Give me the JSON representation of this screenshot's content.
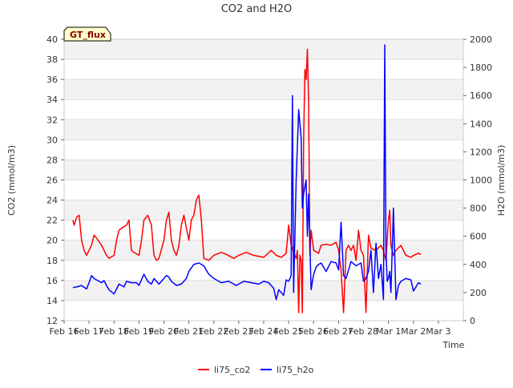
{
  "chart_data": {
    "type": "line",
    "title": "CO2 and H2O",
    "xlabel": "Time",
    "ylabel_left": "CO2 (mmol/m3)",
    "ylabel_right": "H2O (mmol/m3)",
    "badge": "GT_flux",
    "x_range": [
      0,
      16
    ],
    "x_ticks": [
      {
        "x": 0,
        "label": "Feb 16"
      },
      {
        "x": 1,
        "label": "Feb 17"
      },
      {
        "x": 2,
        "label": "Feb 18"
      },
      {
        "x": 3,
        "label": "Feb 19"
      },
      {
        "x": 4,
        "label": "Feb 20"
      },
      {
        "x": 5,
        "label": "Feb 21"
      },
      {
        "x": 6,
        "label": "Feb 22"
      },
      {
        "x": 7,
        "label": "Feb 23"
      },
      {
        "x": 8,
        "label": "Feb 24"
      },
      {
        "x": 9,
        "label": "Feb 25"
      },
      {
        "x": 10,
        "label": "Feb 26"
      },
      {
        "x": 11,
        "label": "Feb 27"
      },
      {
        "x": 12,
        "label": "Feb 28"
      },
      {
        "x": 13,
        "label": "Mar 1"
      },
      {
        "x": 14,
        "label": "Mar 2"
      },
      {
        "x": 15,
        "label": "Mar 3"
      }
    ],
    "y_left_range": [
      12,
      40
    ],
    "y_left_ticks": [
      "12",
      "14",
      "16",
      "18",
      "20",
      "22",
      "24",
      "26",
      "28",
      "30",
      "32",
      "34",
      "36",
      "38",
      "40"
    ],
    "y_right_range": [
      0,
      2000
    ],
    "y_right_ticks": [
      "0",
      "200",
      "400",
      "600",
      "800",
      "1000",
      "1200",
      "1400",
      "1600",
      "1800",
      "2000"
    ],
    "grid": true,
    "legend_position": "bottom-center",
    "series": [
      {
        "name": "li75_co2",
        "color": "#ff0000",
        "axis": "left",
        "x": [
          0.35,
          0.4,
          0.5,
          0.6,
          0.7,
          0.8,
          0.9,
          1.0,
          1.1,
          1.2,
          1.3,
          1.5,
          1.7,
          1.8,
          2.0,
          2.1,
          2.2,
          2.3,
          2.5,
          2.6,
          2.7,
          2.8,
          3.0,
          3.1,
          3.2,
          3.35,
          3.5,
          3.6,
          3.7,
          3.8,
          4.0,
          4.1,
          4.2,
          4.3,
          4.4,
          4.5,
          4.6,
          4.7,
          4.8,
          5.0,
          5.1,
          5.2,
          5.3,
          5.4,
          5.5,
          5.6,
          5.8,
          6.0,
          6.3,
          6.5,
          6.8,
          7.0,
          7.3,
          7.6,
          8.0,
          8.3,
          8.5,
          8.7,
          8.9,
          9.0,
          9.1,
          9.2,
          9.3,
          9.35,
          9.4,
          9.45,
          9.5,
          9.55,
          9.6,
          9.65,
          9.7,
          9.75,
          9.8,
          9.85,
          9.9,
          10.0,
          10.2,
          10.3,
          10.5,
          10.7,
          10.9,
          11.0,
          11.1,
          11.2,
          11.3,
          11.4,
          11.5,
          11.6,
          11.7,
          11.8,
          11.9,
          12.0,
          12.1,
          12.2,
          12.3,
          12.5,
          12.7,
          12.8,
          12.9,
          13.0,
          13.05,
          13.1,
          13.2,
          13.3,
          13.5,
          13.7,
          13.9,
          14.0,
          14.2,
          14.3
        ],
        "y": [
          22.0,
          21.5,
          22.3,
          22.5,
          20.0,
          19.0,
          18.5,
          19.0,
          19.5,
          20.5,
          20.2,
          19.5,
          18.5,
          18.2,
          18.5,
          20.0,
          21.0,
          21.2,
          21.5,
          22.0,
          19.0,
          18.8,
          18.5,
          20.0,
          22.0,
          22.5,
          21.5,
          18.5,
          18.0,
          18.2,
          20.0,
          22.0,
          22.8,
          20.0,
          19.0,
          18.5,
          19.5,
          21.5,
          22.5,
          20.0,
          22.0,
          22.5,
          24.0,
          24.5,
          22.0,
          18.2,
          18.0,
          18.5,
          18.8,
          18.6,
          18.2,
          18.5,
          18.8,
          18.5,
          18.3,
          19.0,
          18.5,
          18.3,
          18.7,
          21.5,
          19.5,
          18.8,
          18.2,
          19.0,
          12.8,
          18.5,
          18.0,
          12.8,
          30.0,
          37.0,
          36.0,
          39.0,
          34.0,
          18.5,
          21.0,
          19.0,
          18.7,
          19.5,
          19.6,
          19.5,
          19.8,
          19.0,
          17.0,
          12.8,
          19.0,
          19.5,
          19.0,
          19.5,
          18.0,
          21.0,
          19.0,
          18.5,
          12.8,
          20.5,
          19.2,
          19.0,
          19.5,
          19.0,
          18.0,
          22.0,
          23.0,
          19.5,
          18.5,
          19.0,
          19.5,
          18.5,
          18.3,
          18.5,
          18.7,
          18.6
        ]
      },
      {
        "name": "li75_h2o",
        "color": "#0000ff",
        "axis": "right",
        "x": [
          0.35,
          0.5,
          0.7,
          0.9,
          1.0,
          1.1,
          1.2,
          1.4,
          1.5,
          1.6,
          1.7,
          1.8,
          2.0,
          2.2,
          2.4,
          2.5,
          2.7,
          2.9,
          3.0,
          3.2,
          3.35,
          3.5,
          3.6,
          3.8,
          4.0,
          4.1,
          4.2,
          4.3,
          4.5,
          4.7,
          4.9,
          5.0,
          5.2,
          5.4,
          5.6,
          5.8,
          6.0,
          6.3,
          6.6,
          6.9,
          7.2,
          7.5,
          7.8,
          8.0,
          8.2,
          8.4,
          8.5,
          8.6,
          8.8,
          8.9,
          9.0,
          9.1,
          9.15,
          9.2,
          9.3,
          9.4,
          9.5,
          9.55,
          9.6,
          9.7,
          9.75,
          9.8,
          9.9,
          10.0,
          10.1,
          10.2,
          10.3,
          10.5,
          10.7,
          10.9,
          11.0,
          11.1,
          11.2,
          11.3,
          11.5,
          11.7,
          11.9,
          12.0,
          12.1,
          12.2,
          12.3,
          12.4,
          12.5,
          12.6,
          12.7,
          12.8,
          12.85,
          12.9,
          12.95,
          13.0,
          13.05,
          13.1,
          13.15,
          13.2,
          13.3,
          13.4,
          13.5,
          13.7,
          13.9,
          14.0,
          14.2,
          14.3
        ],
        "y": [
          235,
          240,
          250,
          225,
          270,
          320,
          300,
          280,
          270,
          285,
          250,
          220,
          190,
          260,
          240,
          280,
          270,
          270,
          250,
          330,
          280,
          260,
          300,
          260,
          300,
          320,
          310,
          280,
          250,
          260,
          300,
          350,
          400,
          410,
          390,
          330,
          300,
          270,
          280,
          250,
          280,
          270,
          260,
          280,
          270,
          230,
          150,
          220,
          180,
          290,
          280,
          320,
          1600,
          200,
          1000,
          1500,
          1300,
          800,
          900,
          1000,
          600,
          900,
          220,
          330,
          380,
          400,
          410,
          350,
          420,
          410,
          360,
          700,
          320,
          300,
          420,
          390,
          410,
          280,
          300,
          350,
          500,
          200,
          550,
          300,
          400,
          150,
          1960,
          500,
          280,
          300,
          350,
          200,
          500,
          800,
          150,
          250,
          280,
          300,
          290,
          210,
          270,
          260
        ]
      }
    ]
  }
}
